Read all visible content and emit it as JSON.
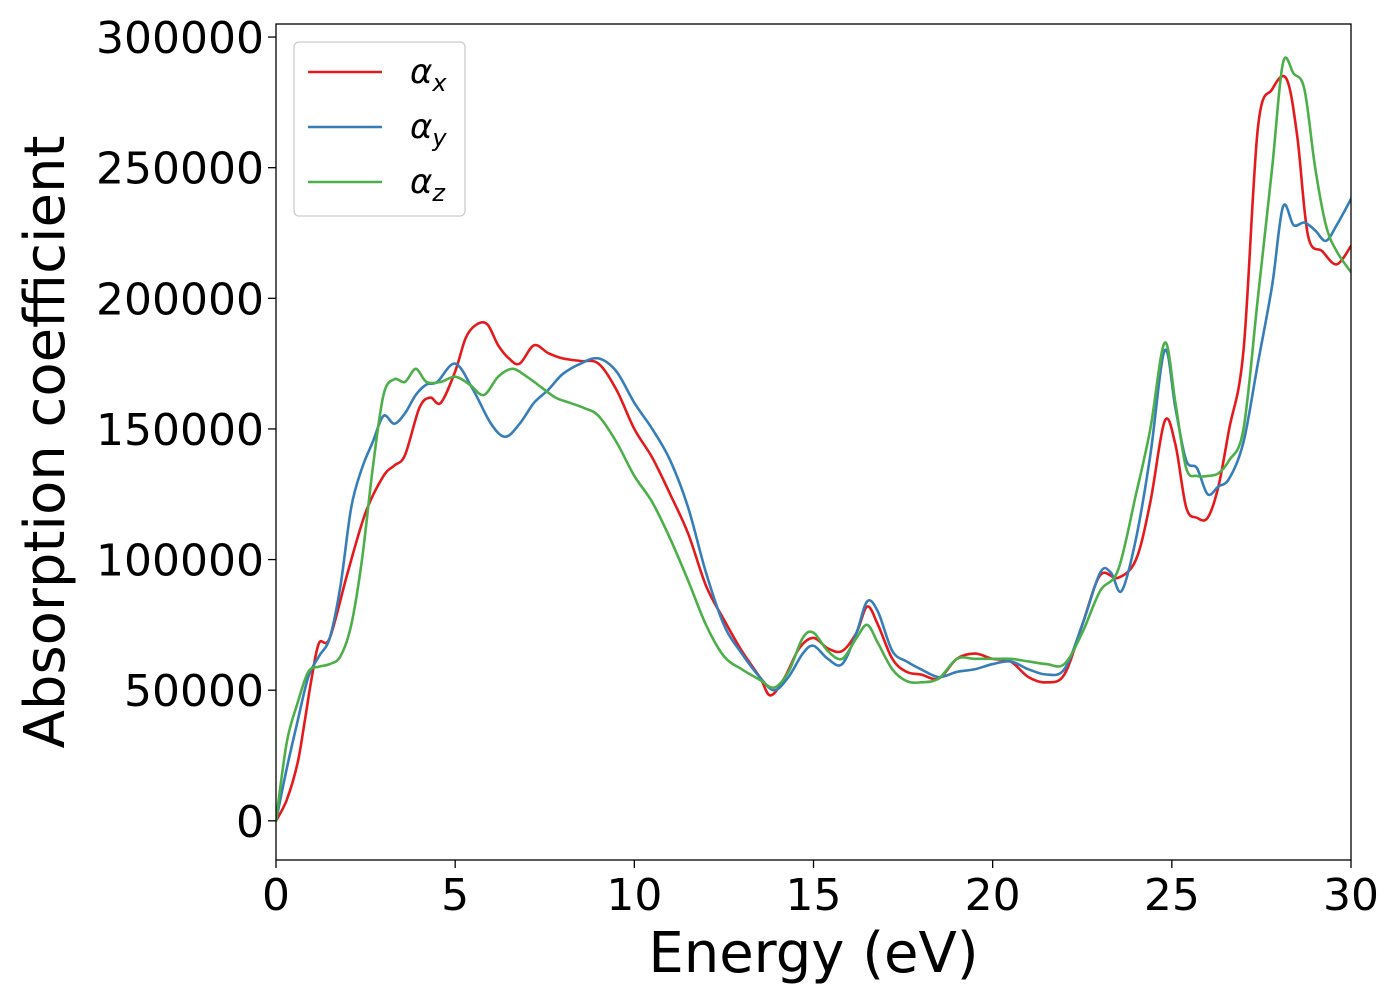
{
  "chart_data": {
    "type": "line",
    "title": "",
    "xlabel": "Energy (eV)",
    "ylabel": "Absorption coefficient",
    "xlim": [
      0,
      30
    ],
    "ylim": [
      -15000,
      305000
    ],
    "xticks": [
      0,
      5,
      10,
      15,
      20,
      25,
      30
    ],
    "yticks": [
      0,
      50000,
      100000,
      150000,
      200000,
      250000,
      300000
    ],
    "xtick_labels": [
      "0",
      "5",
      "10",
      "15",
      "20",
      "25",
      "30"
    ],
    "ytick_labels": [
      "0",
      "50000",
      "100000",
      "150000",
      "200000",
      "250000",
      "300000"
    ],
    "grid": false,
    "legend_position": "upper-left",
    "series": [
      {
        "name": "α_x",
        "label_main": "α",
        "label_sub": "x",
        "color": "#e41a1c",
        "x": [
          0,
          0.3,
          0.6,
          0.8,
          1.0,
          1.2,
          1.5,
          2.0,
          2.5,
          3.0,
          3.3,
          3.6,
          4.0,
          4.3,
          4.6,
          5.0,
          5.3,
          5.6,
          5.9,
          6.2,
          6.5,
          6.8,
          7.2,
          7.6,
          8.0,
          8.5,
          9.0,
          9.5,
          10.0,
          10.5,
          11.0,
          11.5,
          12.0,
          12.5,
          13.0,
          13.5,
          13.8,
          14.2,
          14.6,
          15.0,
          15.4,
          15.8,
          16.2,
          16.5,
          16.8,
          17.2,
          17.6,
          18.0,
          18.5,
          19.0,
          19.5,
          20.0,
          20.5,
          21.0,
          21.5,
          22.0,
          22.5,
          23.0,
          23.5,
          24.0,
          24.4,
          24.8,
          25.1,
          25.4,
          25.7,
          26.0,
          26.3,
          26.6,
          27.0,
          27.4,
          27.8,
          28.2,
          28.5,
          28.8,
          29.2,
          29.6,
          30.0
        ],
        "y": [
          0,
          8000,
          22000,
          38000,
          55000,
          68000,
          70000,
          95000,
          118000,
          132000,
          136000,
          140000,
          158000,
          162000,
          160000,
          172000,
          185000,
          190000,
          190000,
          182000,
          177000,
          175000,
          182000,
          179000,
          177000,
          176000,
          175000,
          165000,
          150000,
          139000,
          125000,
          110000,
          90000,
          77000,
          65000,
          55000,
          48000,
          55000,
          66000,
          70000,
          66000,
          65000,
          72000,
          82000,
          75000,
          62000,
          57000,
          56000,
          54500,
          62000,
          64000,
          62000,
          61000,
          55000,
          53000,
          56000,
          75000,
          94000,
          93000,
          100000,
          122000,
          153000,
          144000,
          120000,
          116000,
          116000,
          128000,
          150000,
          180000,
          265000,
          280000,
          284000,
          262000,
          224000,
          218000,
          213000,
          220000
        ]
      },
      {
        "name": "α_y",
        "label_main": "α",
        "label_sub": "y",
        "color": "#377eb8",
        "x": [
          0,
          0.3,
          0.6,
          0.9,
          1.2,
          1.5,
          1.8,
          2.1,
          2.4,
          2.7,
          3.0,
          3.3,
          3.6,
          3.9,
          4.2,
          4.5,
          5.0,
          5.5,
          6.0,
          6.4,
          6.8,
          7.2,
          7.6,
          8.0,
          8.5,
          9.0,
          9.5,
          10.0,
          10.5,
          11.0,
          11.5,
          12.0,
          12.5,
          13.0,
          13.5,
          13.9,
          14.3,
          14.7,
          15.0,
          15.4,
          15.8,
          16.2,
          16.5,
          16.8,
          17.2,
          17.6,
          18.0,
          18.5,
          19.0,
          19.5,
          20.0,
          20.5,
          21.0,
          21.5,
          22.0,
          22.5,
          23.0,
          23.3,
          23.6,
          24.0,
          24.4,
          24.8,
          25.1,
          25.4,
          25.7,
          26.0,
          26.3,
          26.6,
          27.0,
          27.4,
          27.8,
          28.1,
          28.4,
          28.7,
          29.0,
          29.3,
          29.6,
          30.0
        ],
        "y": [
          0,
          20000,
          38000,
          55000,
          63000,
          70000,
          90000,
          120000,
          135000,
          145000,
          155000,
          152000,
          156000,
          163000,
          167000,
          168000,
          175000,
          165000,
          152000,
          147000,
          152000,
          160000,
          165000,
          171000,
          175000,
          177000,
          172000,
          160000,
          150000,
          138000,
          120000,
          95000,
          75000,
          64000,
          55000,
          50000,
          55000,
          64000,
          67000,
          62000,
          60000,
          72000,
          84000,
          80000,
          65000,
          61000,
          58000,
          55000,
          57000,
          58000,
          60000,
          61000,
          58000,
          56000,
          58000,
          75000,
          95000,
          95000,
          88000,
          108000,
          140000,
          180000,
          158000,
          138000,
          135000,
          125000,
          128000,
          131000,
          145000,
          175000,
          205000,
          235000,
          228000,
          229000,
          226000,
          222000,
          228000,
          238000
        ]
      },
      {
        "name": "α_z",
        "label_main": "α",
        "label_sub": "z",
        "color": "#4daf4a",
        "x": [
          0,
          0.3,
          0.6,
          0.9,
          1.2,
          1.5,
          1.8,
          2.1,
          2.4,
          2.7,
          3.0,
          3.3,
          3.6,
          3.9,
          4.2,
          4.6,
          5.0,
          5.4,
          5.8,
          6.2,
          6.6,
          7.0,
          7.4,
          7.8,
          8.2,
          8.6,
          9.0,
          9.5,
          10.0,
          10.5,
          11.0,
          11.5,
          12.0,
          12.5,
          13.0,
          13.5,
          13.9,
          14.3,
          14.7,
          15.0,
          15.4,
          15.8,
          16.2,
          16.5,
          16.8,
          17.2,
          17.6,
          18.0,
          18.5,
          19.0,
          19.5,
          20.0,
          20.5,
          21.0,
          21.5,
          22.0,
          22.5,
          23.0,
          23.5,
          24.0,
          24.4,
          24.8,
          25.1,
          25.4,
          25.7,
          26.0,
          26.3,
          26.6,
          27.0,
          27.4,
          27.8,
          28.1,
          28.4,
          28.7,
          29.0,
          29.3,
          29.6,
          30.0
        ],
        "y": [
          0,
          30000,
          45000,
          57000,
          59000,
          60000,
          63000,
          75000,
          100000,
          135000,
          163000,
          169000,
          168000,
          173000,
          168000,
          168000,
          170000,
          167000,
          163000,
          170000,
          173000,
          170000,
          166000,
          162000,
          160000,
          158000,
          155000,
          145000,
          132000,
          122000,
          108000,
          92000,
          75000,
          63000,
          58000,
          54000,
          51000,
          57000,
          70000,
          72000,
          65000,
          62000,
          70000,
          75000,
          68000,
          58000,
          53500,
          53000,
          54500,
          62000,
          62000,
          62000,
          62000,
          61000,
          60000,
          60000,
          72000,
          88000,
          96000,
          125000,
          150000,
          183000,
          160000,
          135000,
          132000,
          132000,
          133000,
          138000,
          150000,
          200000,
          250000,
          290000,
          286000,
          280000,
          250000,
          228000,
          218000,
          210000
        ]
      }
    ]
  }
}
